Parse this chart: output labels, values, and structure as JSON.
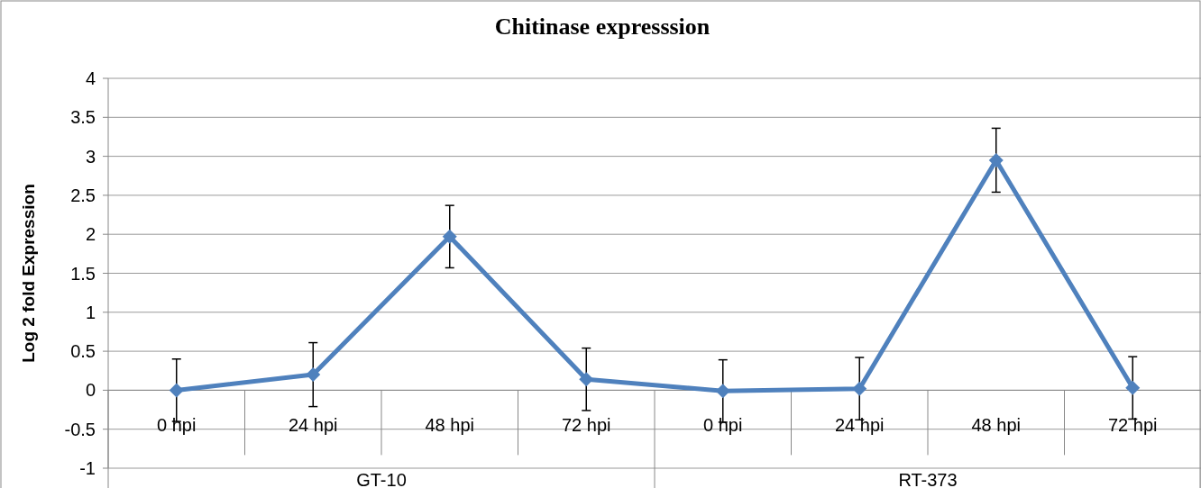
{
  "chart_data": {
    "type": "line",
    "title": "Chitinase expresssion",
    "ylabel": "Log 2 fold Expression",
    "categories": [
      "0 hpi",
      "24 hpi",
      "48 hpi",
      "72 hpi",
      "0 hpi",
      "24 hpi",
      "48 hpi",
      "72 hpi"
    ],
    "series": [
      {
        "color": "#4f81bd",
        "values": [
          0,
          0.2,
          1.97,
          0.14,
          -0.01,
          0.02,
          2.95,
          0.03
        ],
        "errors": [
          0.4,
          0.41,
          0.4,
          0.4,
          0.4,
          0.4,
          0.41,
          0.4
        ]
      }
    ],
    "annotations": [
      "GT-10",
      "RT-373"
    ],
    "ylim": [
      -1,
      4
    ],
    "yticks": [
      -1,
      -0.5,
      0,
      0.5,
      1,
      1.5,
      2,
      2.5,
      3,
      3.5,
      4
    ],
    "grid": "y",
    "marker": "diamond",
    "line_style": "solid"
  }
}
